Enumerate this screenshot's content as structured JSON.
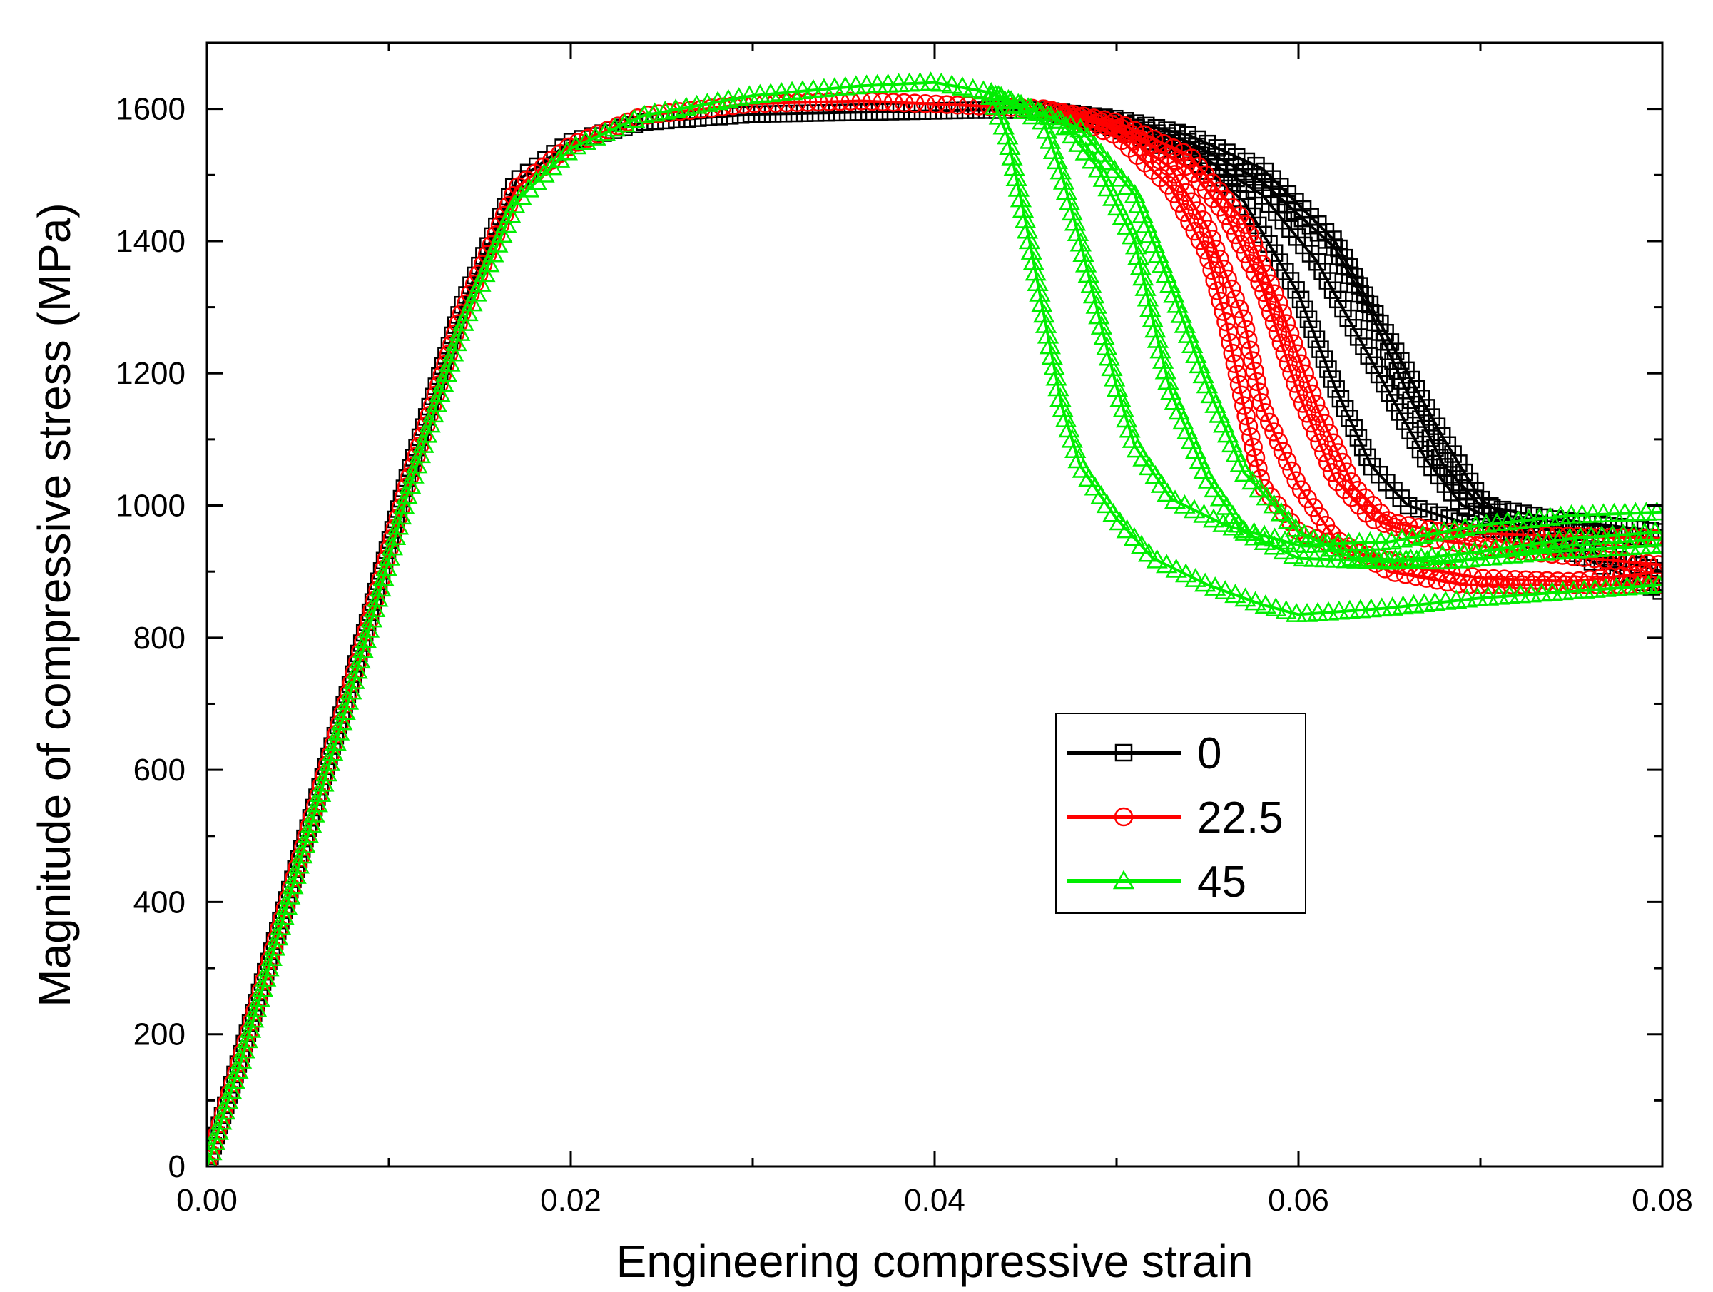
{
  "chart_data": {
    "type": "line",
    "xlabel": "Engineering compressive strain",
    "ylabel": "Magnitude of compressive stress (MPa)",
    "xlim": [
      0,
      0.08
    ],
    "ylim": [
      0,
      1700
    ],
    "xticks": [
      0,
      0.02,
      0.04,
      0.06,
      0.08
    ],
    "xtick_labels": [
      "0.00",
      "0.02",
      "0.04",
      "0.06",
      "0.08"
    ],
    "yticks": [
      0,
      200,
      400,
      600,
      800,
      1000,
      1200,
      1400,
      1600
    ],
    "ytick_labels": [
      "0",
      "200",
      "400",
      "600",
      "800",
      "1000",
      "1200",
      "1400",
      "1600"
    ],
    "grid": false,
    "legend_position": "middle-right",
    "series": [
      {
        "name": "0",
        "color": "#000000",
        "marker": "square",
        "curves": [
          [
            [
              0,
              0
            ],
            [
              0.002,
              180
            ],
            [
              0.005,
              460
            ],
            [
              0.008,
              740
            ],
            [
              0.011,
              1040
            ],
            [
              0.014,
              1300
            ],
            [
              0.017,
              1490
            ],
            [
              0.02,
              1550
            ],
            [
              0.024,
              1580
            ],
            [
              0.03,
              1592
            ],
            [
              0.036,
              1595
            ],
            [
              0.042,
              1598
            ],
            [
              0.046,
              1598
            ],
            [
              0.05,
              1585
            ],
            [
              0.054,
              1560
            ],
            [
              0.058,
              1510
            ],
            [
              0.062,
              1400
            ],
            [
              0.065,
              1250
            ],
            [
              0.068,
              1100
            ],
            [
              0.07,
              1010
            ],
            [
              0.072,
              970
            ],
            [
              0.075,
              960
            ],
            [
              0.08,
              950
            ]
          ],
          [
            [
              0.046,
              1598
            ],
            [
              0.05,
              1575
            ],
            [
              0.054,
              1540
            ],
            [
              0.058,
              1470
            ],
            [
              0.061,
              1370
            ],
            [
              0.064,
              1220
            ],
            [
              0.067,
              1070
            ],
            [
              0.069,
              1000
            ],
            [
              0.072,
              965
            ],
            [
              0.076,
              930
            ],
            [
              0.08,
              900
            ]
          ],
          [
            [
              0.046,
              1598
            ],
            [
              0.05,
              1570
            ],
            [
              0.054,
              1530
            ],
            [
              0.057,
              1460
            ],
            [
              0.06,
              1320
            ],
            [
              0.062,
              1180
            ],
            [
              0.064,
              1060
            ],
            [
              0.066,
              1000
            ],
            [
              0.069,
              975
            ],
            [
              0.074,
              940
            ],
            [
              0.08,
              870
            ]
          ],
          [
            [
              0.046,
              1598
            ],
            [
              0.05,
              1580
            ],
            [
              0.054,
              1550
            ],
            [
              0.058,
              1490
            ],
            [
              0.062,
              1390
            ],
            [
              0.064,
              1290
            ],
            [
              0.066,
              1170
            ],
            [
              0.068,
              1060
            ],
            [
              0.07,
              1000
            ],
            [
              0.074,
              980
            ],
            [
              0.08,
              960
            ]
          ]
        ]
      },
      {
        "name": "22.5",
        "color": "#ff0000",
        "marker": "circle",
        "curves": [
          [
            [
              0,
              0
            ],
            [
              0.002,
              175
            ],
            [
              0.005,
              455
            ],
            [
              0.008,
              735
            ],
            [
              0.011,
              1030
            ],
            [
              0.014,
              1290
            ],
            [
              0.017,
              1480
            ],
            [
              0.02,
              1545
            ],
            [
              0.024,
              1590
            ],
            [
              0.03,
              1608
            ],
            [
              0.036,
              1612
            ],
            [
              0.042,
              1605
            ],
            [
              0.046,
              1600
            ],
            [
              0.05,
              1560
            ],
            [
              0.053,
              1480
            ],
            [
              0.055,
              1380
            ],
            [
              0.056,
              1280
            ],
            [
              0.057,
              1150
            ],
            [
              0.058,
              1030
            ],
            [
              0.06,
              960
            ],
            [
              0.063,
              930
            ],
            [
              0.066,
              910
            ],
            [
              0.07,
              890
            ],
            [
              0.075,
              885
            ],
            [
              0.08,
              900
            ]
          ],
          [
            [
              0.046,
              1600
            ],
            [
              0.05,
              1575
            ],
            [
              0.054,
              1510
            ],
            [
              0.056,
              1440
            ],
            [
              0.058,
              1330
            ],
            [
              0.06,
              1170
            ],
            [
              0.062,
              1040
            ],
            [
              0.064,
              980
            ],
            [
              0.067,
              950
            ],
            [
              0.071,
              935
            ],
            [
              0.076,
              920
            ],
            [
              0.08,
              910
            ]
          ],
          [
            [
              0.046,
              1600
            ],
            [
              0.05,
              1580
            ],
            [
              0.054,
              1530
            ],
            [
              0.057,
              1430
            ],
            [
              0.059,
              1300
            ],
            [
              0.061,
              1150
            ],
            [
              0.063,
              1030
            ],
            [
              0.065,
              975
            ],
            [
              0.068,
              960
            ],
            [
              0.073,
              955
            ],
            [
              0.08,
              950
            ]
          ],
          [
            [
              0.046,
              1600
            ],
            [
              0.05,
              1570
            ],
            [
              0.053,
              1510
            ],
            [
              0.055,
              1420
            ],
            [
              0.057,
              1280
            ],
            [
              0.058,
              1150
            ],
            [
              0.06,
              1030
            ],
            [
              0.062,
              950
            ],
            [
              0.065,
              900
            ],
            [
              0.069,
              880
            ],
            [
              0.074,
              880
            ],
            [
              0.08,
              880
            ]
          ]
        ]
      },
      {
        "name": "45",
        "color": "#00ee00",
        "marker": "triangle",
        "curves": [
          [
            [
              0,
              0
            ],
            [
              0.002,
              170
            ],
            [
              0.005,
              450
            ],
            [
              0.008,
              725
            ],
            [
              0.011,
              1015
            ],
            [
              0.014,
              1270
            ],
            [
              0.017,
              1460
            ],
            [
              0.02,
              1540
            ],
            [
              0.024,
              1590
            ],
            [
              0.03,
              1620
            ],
            [
              0.036,
              1635
            ],
            [
              0.04,
              1640
            ],
            [
              0.043,
              1625
            ],
            [
              0.044,
              1560
            ],
            [
              0.045,
              1430
            ],
            [
              0.046,
              1290
            ],
            [
              0.047,
              1150
            ],
            [
              0.048,
              1060
            ],
            [
              0.05,
              980
            ],
            [
              0.052,
              920
            ],
            [
              0.055,
              880
            ],
            [
              0.058,
              850
            ],
            [
              0.06,
              835
            ],
            [
              0.065,
              845
            ],
            [
              0.07,
              860
            ],
            [
              0.075,
              870
            ],
            [
              0.08,
              880
            ]
          ],
          [
            [
              0.043,
              1625
            ],
            [
              0.046,
              1580
            ],
            [
              0.047,
              1500
            ],
            [
              0.048,
              1400
            ],
            [
              0.049,
              1290
            ],
            [
              0.05,
              1180
            ],
            [
              0.051,
              1090
            ],
            [
              0.053,
              1010
            ],
            [
              0.056,
              970
            ],
            [
              0.06,
              940
            ],
            [
              0.065,
              945
            ],
            [
              0.07,
              970
            ],
            [
              0.075,
              985
            ],
            [
              0.08,
              990
            ]
          ],
          [
            [
              0.043,
              1625
            ],
            [
              0.047,
              1580
            ],
            [
              0.049,
              1510
            ],
            [
              0.051,
              1400
            ],
            [
              0.052,
              1280
            ],
            [
              0.053,
              1170
            ],
            [
              0.055,
              1040
            ],
            [
              0.057,
              960
            ],
            [
              0.06,
              920
            ],
            [
              0.065,
              915
            ],
            [
              0.07,
              930
            ],
            [
              0.075,
              950
            ],
            [
              0.08,
              960
            ]
          ],
          [
            [
              0.043,
              1625
            ],
            [
              0.048,
              1570
            ],
            [
              0.051,
              1470
            ],
            [
              0.053,
              1330
            ],
            [
              0.055,
              1180
            ],
            [
              0.057,
              1050
            ],
            [
              0.06,
              960
            ],
            [
              0.063,
              920
            ],
            [
              0.068,
              915
            ],
            [
              0.074,
              930
            ],
            [
              0.08,
              940
            ]
          ]
        ]
      }
    ]
  }
}
